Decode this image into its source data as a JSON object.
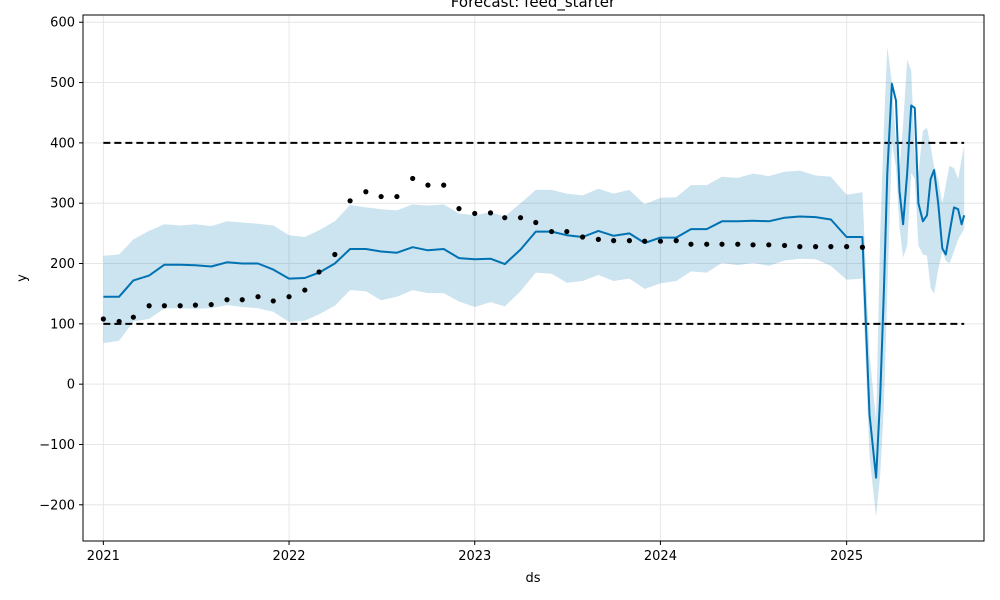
{
  "chart_data": {
    "type": "line",
    "title": "Forecast: feed_starter",
    "xlabel": "ds",
    "ylabel": "y",
    "xlim": [
      "2020-11-22",
      "2025-09-28"
    ],
    "ylim": [
      -260,
      612
    ],
    "grid": true,
    "x_ticks": [
      "2021-01-01",
      "2022-01-01",
      "2023-01-01",
      "2024-01-01",
      "2025-01-01"
    ],
    "x_tick_labels": [
      "2021",
      "2022",
      "2023",
      "2024",
      "2025"
    ],
    "y_ticks": [
      -200,
      -100,
      0,
      100,
      200,
      300,
      400,
      500,
      600
    ],
    "y_tick_labels": [
      "−200",
      "−100",
      "0",
      "100",
      "200",
      "300",
      "400",
      "500",
      "600"
    ],
    "reference_lines": [
      {
        "y": 400,
        "style": "dashed",
        "color": "#000000",
        "x_range": [
          "2021-01-01",
          "2025-08-20"
        ]
      },
      {
        "y": 100,
        "style": "dashed",
        "color": "#000000",
        "x_range": [
          "2021-01-01",
          "2025-08-20"
        ]
      }
    ],
    "colors": {
      "forecast": "#0072B2",
      "interval": "#0072B2",
      "actual": "#000000"
    },
    "actual": {
      "x": [
        "2021-01-01",
        "2021-02-01",
        "2021-03-01",
        "2021-04-01",
        "2021-05-01",
        "2021-06-01",
        "2021-07-01",
        "2021-08-01",
        "2021-09-01",
        "2021-10-01",
        "2021-11-01",
        "2021-12-01",
        "2022-01-01",
        "2022-02-01",
        "2022-03-01",
        "2022-04-01",
        "2022-05-01",
        "2022-06-01",
        "2022-07-01",
        "2022-08-01",
        "2022-09-01",
        "2022-10-01",
        "2022-11-01",
        "2022-12-01",
        "2023-01-01",
        "2023-02-01",
        "2023-03-01",
        "2023-04-01",
        "2023-05-01",
        "2023-06-01",
        "2023-07-01",
        "2023-08-01",
        "2023-09-01",
        "2023-10-01",
        "2023-11-01",
        "2023-12-01",
        "2024-01-01",
        "2024-02-01",
        "2024-03-01",
        "2024-04-01",
        "2024-05-01",
        "2024-06-01",
        "2024-07-01",
        "2024-08-01",
        "2024-09-01",
        "2024-10-01",
        "2024-11-01",
        "2024-12-01",
        "2025-01-01",
        "2025-02-01"
      ],
      "y": [
        108,
        104,
        111,
        130,
        130,
        130,
        131,
        132,
        140,
        140,
        145,
        138,
        145,
        156,
        186,
        215,
        304,
        319,
        311,
        311,
        341,
        330,
        330,
        291,
        283,
        284,
        276,
        276,
        268,
        253,
        253,
        244,
        240,
        238,
        238,
        237,
        237,
        238,
        232,
        232,
        232,
        232,
        231,
        231,
        230,
        228,
        228,
        228,
        228,
        227
      ]
    },
    "forecast": {
      "x": [
        "2021-01-01",
        "2021-02-01",
        "2021-03-01",
        "2021-04-01",
        "2021-05-01",
        "2021-06-01",
        "2021-07-01",
        "2021-08-01",
        "2021-09-01",
        "2021-10-01",
        "2021-11-01",
        "2021-12-01",
        "2022-01-01",
        "2022-02-01",
        "2022-03-01",
        "2022-04-01",
        "2022-05-01",
        "2022-06-01",
        "2022-07-01",
        "2022-08-01",
        "2022-09-01",
        "2022-10-01",
        "2022-11-01",
        "2022-12-01",
        "2023-01-01",
        "2023-02-01",
        "2023-03-01",
        "2023-04-01",
        "2023-05-01",
        "2023-06-01",
        "2023-07-01",
        "2023-08-01",
        "2023-09-01",
        "2023-10-01",
        "2023-11-01",
        "2023-12-01",
        "2024-01-01",
        "2024-02-01",
        "2024-03-01",
        "2024-04-01",
        "2024-05-01",
        "2024-06-01",
        "2024-07-01",
        "2024-08-01",
        "2024-09-01",
        "2024-10-01",
        "2024-11-01",
        "2024-12-01",
        "2025-01-01",
        "2025-02-01",
        "2025-02-15",
        "2025-02-28",
        "2025-03-08",
        "2025-03-15",
        "2025-03-22",
        "2025-03-31",
        "2025-04-08",
        "2025-04-15",
        "2025-04-22",
        "2025-04-30",
        "2025-05-08",
        "2025-05-15",
        "2025-05-22",
        "2025-05-31",
        "2025-06-08",
        "2025-06-15",
        "2025-06-22",
        "2025-06-30",
        "2025-07-08",
        "2025-07-15",
        "2025-07-22",
        "2025-07-31",
        "2025-08-08",
        "2025-08-15",
        "2025-08-20"
      ],
      "yhat": [
        145,
        145,
        172,
        180,
        198,
        198,
        197,
        195,
        202,
        200,
        200,
        190,
        175,
        176,
        185,
        200,
        224,
        224,
        220,
        218,
        227,
        222,
        224,
        209,
        207,
        208,
        199,
        223,
        253,
        253,
        247,
        244,
        254,
        246,
        250,
        234,
        243,
        243,
        257,
        257,
        270,
        270,
        271,
        270,
        276,
        278,
        277,
        273,
        244,
        244,
        -50,
        -155,
        -20,
        150,
        350,
        498,
        470,
        320,
        265,
        350,
        462,
        458,
        300,
        270,
        280,
        340,
        355,
        300,
        225,
        215,
        250,
        293,
        290,
        265,
        280
      ]
    },
    "forecast_interval": {
      "upper": [
        213,
        215,
        240,
        254,
        265,
        263,
        265,
        262,
        270,
        268,
        266,
        263,
        247,
        244,
        255,
        270,
        297,
        293,
        290,
        288,
        298,
        296,
        298,
        283,
        280,
        285,
        278,
        300,
        322,
        322,
        316,
        313,
        324,
        316,
        322,
        298,
        309,
        310,
        330,
        330,
        344,
        342,
        349,
        345,
        352,
        354,
        346,
        344,
        314,
        318,
        50,
        -60,
        250,
        420,
        560,
        500,
        400,
        355,
        430,
        538,
        520,
        380,
        350,
        420,
        425,
        395,
        360,
        340,
        300,
        330,
        362,
        358,
        340,
        373,
        395
      ],
      "lower": [
        68,
        72,
        104,
        108,
        126,
        126,
        125,
        126,
        131,
        128,
        126,
        120,
        103,
        105,
        116,
        130,
        156,
        154,
        139,
        145,
        156,
        151,
        151,
        137,
        128,
        136,
        129,
        154,
        185,
        183,
        168,
        171,
        181,
        171,
        175,
        158,
        167,
        171,
        187,
        185,
        201,
        197,
        201,
        196,
        205,
        208,
        207,
        196,
        173,
        175,
        -120,
        -220,
        -150,
        -40,
        150,
        400,
        360,
        260,
        210,
        230,
        350,
        340,
        230,
        215,
        213,
        160,
        150,
        190,
        220,
        205,
        200,
        220,
        240,
        250,
        258
      ]
    }
  }
}
